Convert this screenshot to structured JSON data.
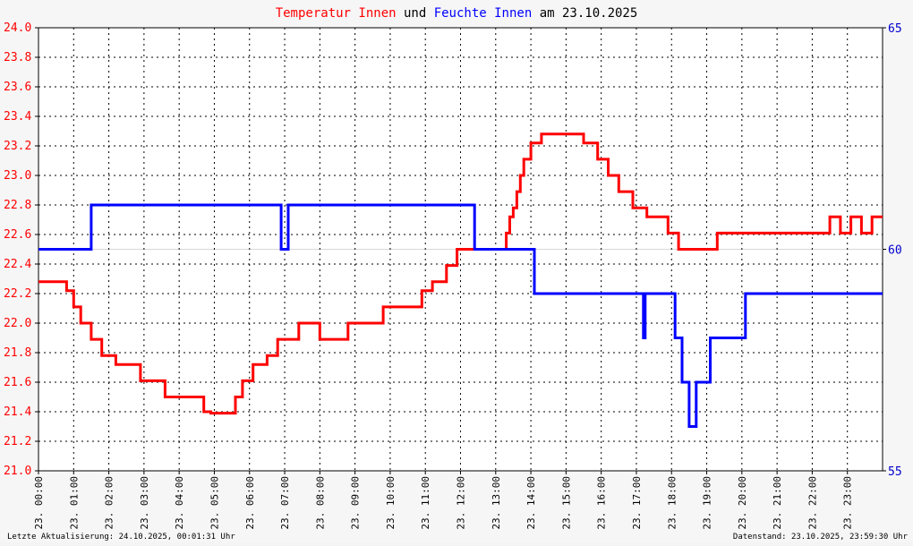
{
  "title": {
    "part1": "Temperatur Innen",
    "part2": " und ",
    "part3": "Feuchte Innen",
    "part4": " am 23.10.2025"
  },
  "footer": {
    "left": "Letzte Aktualisierung: 24.10.2025, 00:01:31 Uhr",
    "right": "Datenstand: 23.10.2025, 23:59:30 Uhr"
  },
  "colors": {
    "temperature": "#ff0000",
    "humidity": "#0000ff",
    "right_axis_text": "#0000cc",
    "grid": "#000000",
    "background": "#f6f6f6",
    "reference_line": "#d8d8d8"
  },
  "chart_data": {
    "type": "line",
    "grid": true,
    "x_ticks": [
      "23. 00:00",
      "23. 01:00",
      "23. 02:00",
      "23. 03:00",
      "23. 04:00",
      "23. 05:00",
      "23. 06:00",
      "23. 07:00",
      "23. 08:00",
      "23. 09:00",
      "23. 10:00",
      "23. 11:00",
      "23. 12:00",
      "23. 13:00",
      "23. 14:00",
      "23. 15:00",
      "23. 16:00",
      "23. 17:00",
      "23. 18:00",
      "23. 19:00",
      "23. 20:00",
      "23. 21:00",
      "23. 22:00",
      "23. 23:00"
    ],
    "xlim": [
      0,
      24
    ],
    "y_left": {
      "ylim": [
        21.0,
        24.0
      ],
      "ticks": [
        "21.0",
        "21.2",
        "21.4",
        "21.6",
        "21.8",
        "22.0",
        "22.2",
        "22.4",
        "22.6",
        "22.8",
        "23.0",
        "23.2",
        "23.4",
        "23.6",
        "23.8",
        "24.0"
      ]
    },
    "y_right": {
      "ylim": [
        55,
        65
      ],
      "ticks": [
        "55",
        "60",
        "65"
      ]
    },
    "series": [
      {
        "name": "Temperatur Innen",
        "axis": "left",
        "color": "#ff0000",
        "points": [
          [
            0.0,
            22.28
          ],
          [
            0.8,
            22.28
          ],
          [
            0.8,
            22.22
          ],
          [
            1.0,
            22.22
          ],
          [
            1.0,
            22.11
          ],
          [
            1.2,
            22.11
          ],
          [
            1.2,
            22.0
          ],
          [
            1.5,
            22.0
          ],
          [
            1.5,
            21.89
          ],
          [
            1.8,
            21.89
          ],
          [
            1.8,
            21.78
          ],
          [
            2.2,
            21.78
          ],
          [
            2.2,
            21.72
          ],
          [
            2.9,
            21.72
          ],
          [
            2.9,
            21.61
          ],
          [
            3.6,
            21.61
          ],
          [
            3.6,
            21.5
          ],
          [
            4.7,
            21.5
          ],
          [
            4.7,
            21.4
          ],
          [
            4.9,
            21.4
          ],
          [
            4.9,
            21.39
          ],
          [
            5.6,
            21.39
          ],
          [
            5.6,
            21.5
          ],
          [
            5.8,
            21.5
          ],
          [
            5.8,
            21.61
          ],
          [
            6.1,
            21.61
          ],
          [
            6.1,
            21.72
          ],
          [
            6.5,
            21.72
          ],
          [
            6.5,
            21.78
          ],
          [
            6.8,
            21.78
          ],
          [
            6.8,
            21.89
          ],
          [
            7.4,
            21.89
          ],
          [
            7.4,
            22.0
          ],
          [
            8.0,
            22.0
          ],
          [
            8.0,
            21.89
          ],
          [
            8.8,
            21.89
          ],
          [
            8.8,
            22.0
          ],
          [
            9.8,
            22.0
          ],
          [
            9.8,
            22.11
          ],
          [
            10.9,
            22.11
          ],
          [
            10.9,
            22.22
          ],
          [
            11.2,
            22.22
          ],
          [
            11.2,
            22.28
          ],
          [
            11.6,
            22.28
          ],
          [
            11.6,
            22.39
          ],
          [
            11.9,
            22.39
          ],
          [
            11.9,
            22.5
          ],
          [
            13.3,
            22.5
          ],
          [
            13.3,
            22.61
          ],
          [
            13.4,
            22.61
          ],
          [
            13.4,
            22.72
          ],
          [
            13.5,
            22.72
          ],
          [
            13.5,
            22.78
          ],
          [
            13.6,
            22.78
          ],
          [
            13.6,
            22.89
          ],
          [
            13.7,
            22.89
          ],
          [
            13.7,
            23.0
          ],
          [
            13.8,
            23.0
          ],
          [
            13.8,
            23.11
          ],
          [
            14.0,
            23.11
          ],
          [
            14.0,
            23.22
          ],
          [
            14.3,
            23.22
          ],
          [
            14.3,
            23.28
          ],
          [
            15.5,
            23.28
          ],
          [
            15.5,
            23.22
          ],
          [
            15.9,
            23.22
          ],
          [
            15.9,
            23.11
          ],
          [
            16.2,
            23.11
          ],
          [
            16.2,
            23.0
          ],
          [
            16.5,
            23.0
          ],
          [
            16.5,
            22.89
          ],
          [
            16.9,
            22.89
          ],
          [
            16.9,
            22.78
          ],
          [
            17.3,
            22.78
          ],
          [
            17.3,
            22.72
          ],
          [
            17.9,
            22.72
          ],
          [
            17.9,
            22.61
          ],
          [
            18.2,
            22.61
          ],
          [
            18.2,
            22.5
          ],
          [
            19.3,
            22.5
          ],
          [
            19.3,
            22.61
          ],
          [
            22.5,
            22.61
          ],
          [
            22.5,
            22.72
          ],
          [
            22.8,
            22.72
          ],
          [
            22.8,
            22.61
          ],
          [
            23.1,
            22.61
          ],
          [
            23.1,
            22.72
          ],
          [
            23.4,
            22.72
          ],
          [
            23.4,
            22.61
          ],
          [
            23.7,
            22.61
          ],
          [
            23.7,
            22.72
          ],
          [
            24.0,
            22.72
          ]
        ]
      },
      {
        "name": "Feuchte Innen",
        "axis": "right",
        "color": "#0000ff",
        "points": [
          [
            0.0,
            60.0
          ],
          [
            1.5,
            60.0
          ],
          [
            1.5,
            61.0
          ],
          [
            6.9,
            61.0
          ],
          [
            6.9,
            60.0
          ],
          [
            7.1,
            60.0
          ],
          [
            7.1,
            61.0
          ],
          [
            12.4,
            61.0
          ],
          [
            12.4,
            60.0
          ],
          [
            14.1,
            60.0
          ],
          [
            14.1,
            59.0
          ],
          [
            17.2,
            59.0
          ],
          [
            17.2,
            58.0
          ],
          [
            17.25,
            58.0
          ],
          [
            17.25,
            59.0
          ],
          [
            18.1,
            59.0
          ],
          [
            18.1,
            58.0
          ],
          [
            18.3,
            58.0
          ],
          [
            18.3,
            57.0
          ],
          [
            18.5,
            57.0
          ],
          [
            18.5,
            56.0
          ],
          [
            18.7,
            56.0
          ],
          [
            18.7,
            57.0
          ],
          [
            19.1,
            57.0
          ],
          [
            19.1,
            58.0
          ],
          [
            20.1,
            58.0
          ],
          [
            20.1,
            59.0
          ],
          [
            24.0,
            59.0
          ]
        ]
      }
    ]
  }
}
